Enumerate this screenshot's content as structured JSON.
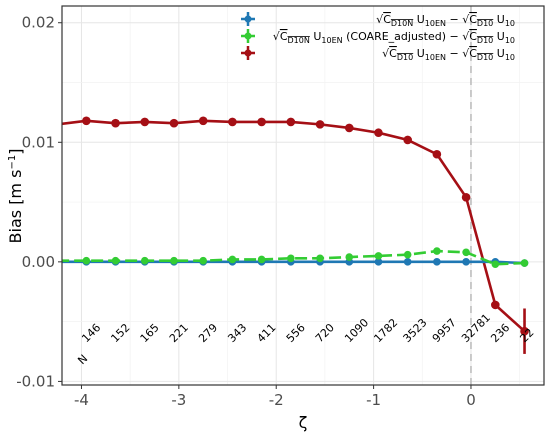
{
  "chart_data": {
    "type": "line",
    "xlabel": "ζ",
    "ylabel": "Bias [m s⁻¹]",
    "xlim": [
      -4.2,
      0.75
    ],
    "ylim": [
      -0.0103,
      0.0214
    ],
    "x_ticks": [
      -4,
      -3,
      -2,
      -1,
      0
    ],
    "x_tick_labels": [
      "-4",
      "-3",
      "-2",
      "-1",
      "0"
    ],
    "y_ticks": [
      -0.01,
      0.0,
      0.01,
      0.02
    ],
    "y_tick_labels": [
      "-0.01",
      "0.00",
      "0.01",
      "0.02"
    ],
    "grid": true,
    "legend_position": "top-right",
    "reference_line_x": 0,
    "x": [
      -4.25,
      -3.95,
      -3.65,
      -3.35,
      -3.05,
      -2.75,
      -2.45,
      -2.15,
      -1.85,
      -1.55,
      -1.25,
      -0.95,
      -0.65,
      -0.35,
      -0.05,
      0.25,
      0.55
    ],
    "series": [
      {
        "name": "√C_D10N U_10EN − √C_D10 U_10",
        "color": "#1f78b4",
        "values": [
          0.0,
          0.0,
          0.0,
          0.0,
          0.0,
          0.0,
          0.0,
          0.0,
          0.0,
          0.0,
          0.0,
          0.0,
          0.0,
          0.0,
          0.0,
          0.0,
          -0.0001
        ]
      },
      {
        "name": "√C_D10N U_10EN (COARE_adjusted) − √C_D10 U_10",
        "color": "#33cc33",
        "values": [
          0.0001,
          0.0001,
          0.0001,
          0.0001,
          0.0001,
          0.0001,
          0.0002,
          0.0002,
          0.0003,
          0.0003,
          0.0004,
          0.0005,
          0.0006,
          0.0009,
          0.0008,
          -0.0002,
          -0.0001
        ]
      },
      {
        "name": "√C_D10 U_10EN − √C_D10 U_10",
        "color": "#a50f15",
        "values": [
          0.0115,
          0.0118,
          0.0116,
          0.0117,
          0.0116,
          0.0118,
          0.0117,
          0.0117,
          0.0117,
          0.0115,
          0.0112,
          0.0108,
          0.0102,
          0.009,
          0.0054,
          -0.0036,
          -0.0058
        ],
        "error_bar_index": 16,
        "error_bar": [
          -0.0077,
          -0.0039
        ]
      }
    ],
    "n_label_prefix": "N",
    "n_counts": [
      {
        "x": -3.95,
        "text": "146"
      },
      {
        "x": -3.65,
        "text": "152"
      },
      {
        "x": -3.35,
        "text": "165"
      },
      {
        "x": -3.05,
        "text": "221"
      },
      {
        "x": -2.75,
        "text": "279"
      },
      {
        "x": -2.45,
        "text": "343"
      },
      {
        "x": -2.15,
        "text": "411"
      },
      {
        "x": -1.85,
        "text": "556"
      },
      {
        "x": -1.55,
        "text": "720"
      },
      {
        "x": -1.25,
        "text": "1090"
      },
      {
        "x": -0.95,
        "text": "1782"
      },
      {
        "x": -0.65,
        "text": "3523"
      },
      {
        "x": -0.35,
        "text": "9957"
      },
      {
        "x": -0.05,
        "text": "32781"
      },
      {
        "x": 0.25,
        "text": "236"
      },
      {
        "x": 0.55,
        "text": "22"
      }
    ]
  }
}
